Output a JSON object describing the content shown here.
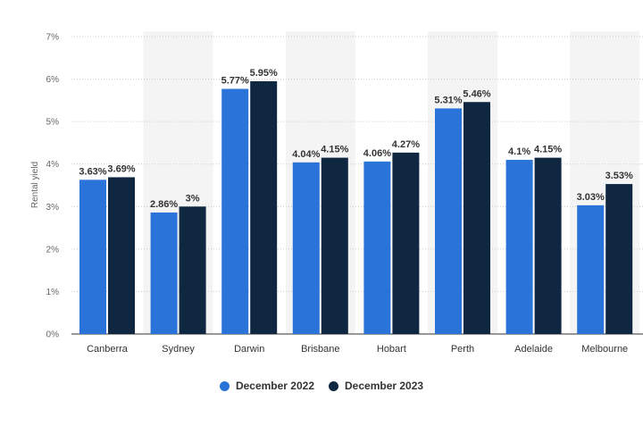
{
  "colors": {
    "series1": "#2a74d9",
    "series2": "#0f2740",
    "band": "#f4f4f5",
    "grid": "#cccccc"
  },
  "chart_data": {
    "type": "bar",
    "title": "",
    "xlabel": "",
    "ylabel": "Rental yield",
    "ylim": [
      0,
      7
    ],
    "yticks": [
      "0%",
      "1%",
      "2%",
      "3%",
      "4%",
      "5%",
      "6%",
      "7%"
    ],
    "categories": [
      "Canberra",
      "Sydney",
      "Darwin",
      "Brisbane",
      "Hobart",
      "Perth",
      "Adelaide",
      "Melbourne"
    ],
    "series": [
      {
        "name": "December 2022",
        "values": [
          3.63,
          2.86,
          5.77,
          4.04,
          4.06,
          5.31,
          4.1,
          3.03
        ],
        "labels": [
          "3.63%",
          "2.86%",
          "5.77%",
          "4.04%",
          "4.06%",
          "5.31%",
          "4.1%",
          "3.03%"
        ]
      },
      {
        "name": "December 2023",
        "values": [
          3.69,
          3,
          5.95,
          4.15,
          4.27,
          5.46,
          4.15,
          3.53
        ],
        "labels": [
          "3.69%",
          "3%",
          "5.95%",
          "4.15%",
          "4.27%",
          "5.46%",
          "4.15%",
          "3.53%"
        ]
      }
    ],
    "grid": true,
    "legend_position": "bottom"
  }
}
